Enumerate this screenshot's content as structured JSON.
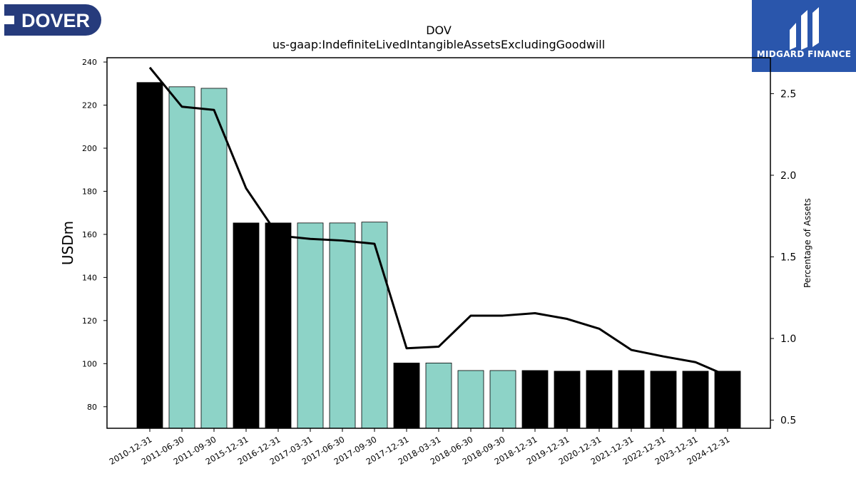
{
  "header": {
    "left_logo": {
      "text": "DOVER",
      "bg_color": "#263b7c",
      "icon": "dover-logo-icon"
    },
    "right_logo": {
      "text": "MIDGARD FINANCE",
      "bg_color": "#2a56ac",
      "icon": "midgard-logo-icon"
    }
  },
  "chart_data": {
    "type": "bar",
    "title": "DOV",
    "subtitle": "us-gaap:IndefiniteLivedIntangibleAssetsExcludingGoodwill",
    "ylabel": "USDm",
    "y2label": "Percentage of Assets",
    "categories": [
      "2010-12-31",
      "2011-06-30",
      "2011-09-30",
      "2015-12-31",
      "2016-12-31",
      "2017-03-31",
      "2017-06-30",
      "2017-09-30",
      "2017-12-31",
      "2018-03-31",
      "2018-06-30",
      "2018-09-30",
      "2018-12-31",
      "2019-12-31",
      "2020-12-31",
      "2021-12-31",
      "2022-12-31",
      "2023-12-31",
      "2024-12-31"
    ],
    "series": [
      {
        "type": "bar",
        "axis": "left",
        "values": [
          230.5,
          228.5,
          227.8,
          165.3,
          165.3,
          165.3,
          165.3,
          165.7,
          100.3,
          100.3,
          96.8,
          96.8,
          96.8,
          96.5,
          96.8,
          96.8,
          96.5,
          96.5,
          96.5
        ]
      },
      {
        "type": "line",
        "axis": "right",
        "values": [
          2.66,
          2.42,
          2.4,
          1.92,
          1.63,
          1.61,
          1.6,
          1.58,
          0.94,
          0.95,
          1.14,
          1.14,
          1.155,
          1.12,
          1.06,
          0.93,
          0.89,
          0.855,
          0.77
        ]
      }
    ],
    "bar_colors": [
      "#000000",
      "#8dd3c7",
      "#8dd3c7",
      "#000000",
      "#000000",
      "#8dd3c7",
      "#8dd3c7",
      "#8dd3c7",
      "#000000",
      "#8dd3c7",
      "#8dd3c7",
      "#8dd3c7",
      "#000000",
      "#000000",
      "#000000",
      "#000000",
      "#000000",
      "#000000",
      "#000000"
    ],
    "line_color": "#000000",
    "ylim": [
      70,
      242
    ],
    "yticks": [
      80,
      100,
      120,
      140,
      160,
      180,
      200,
      220,
      240
    ],
    "y2lim": [
      0.45,
      2.72
    ],
    "y2ticks": [
      0.5,
      1.0,
      1.5,
      2.0,
      2.5
    ],
    "y2ticklabels": [
      "0.5",
      "1.0",
      "1.5",
      "2.0",
      "2.5"
    ],
    "grid": false,
    "legend": "none"
  }
}
